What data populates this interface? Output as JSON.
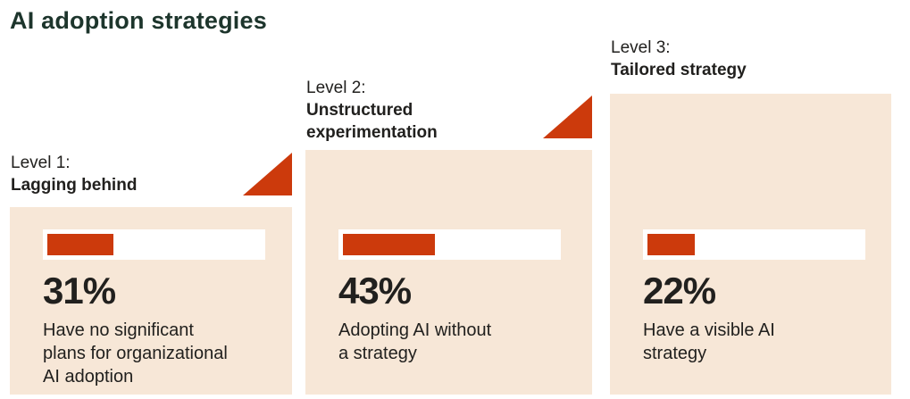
{
  "page": {
    "title": "AI adoption strategies"
  },
  "colors": {
    "accent_orange": "#cc3a0c",
    "card_bg": "#f7e7d7",
    "title_green": "#1d352c",
    "text_dark": "#21201e",
    "bar_track": "#ffffff"
  },
  "levels": [
    {
      "level_label": "Level 1:",
      "name": "Lagging behind",
      "percent": "31%",
      "value": 31,
      "description": "Have no significant\nplans for organizational\nAI adoption",
      "has_triangle": true
    },
    {
      "level_label": "Level 2:",
      "name": "Unstructured\nexperimentation",
      "percent": "43%",
      "value": 43,
      "description": "Adopting AI without\na strategy",
      "has_triangle": true
    },
    {
      "level_label": "Level 3:",
      "name": "Tailored strategy",
      "percent": "22%",
      "value": 22,
      "description": "Have a visible AI\nstrategy",
      "has_triangle": false
    }
  ],
  "chart_data": {
    "type": "bar",
    "title": "AI adoption strategies",
    "categories": [
      "Level 1: Lagging behind",
      "Level 2: Unstructured experimentation",
      "Level 3: Tailored strategy"
    ],
    "values": [
      31,
      43,
      22
    ],
    "value_unit": "%",
    "xlabel": "",
    "ylabel": "",
    "ylim": [
      0,
      100
    ],
    "grid": false,
    "legend_position": "none",
    "annotations": [
      "31% Have no significant plans for organizational AI adoption",
      "43% Adopting AI without a strategy",
      "22% Have a visible AI strategy"
    ]
  }
}
